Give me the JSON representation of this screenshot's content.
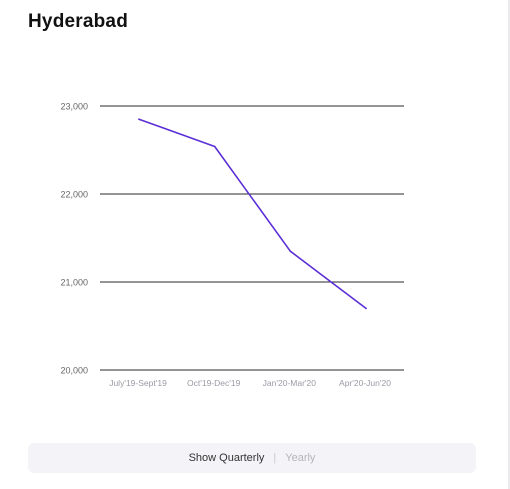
{
  "title": "Hyderabad",
  "toggle": {
    "active_label": "Show Quarterly",
    "separator": "|",
    "inactive_label": "Yearly"
  },
  "colors": {
    "line": "#5b2fd6",
    "grid": "#2a2a2a",
    "tick_text": "#666666",
    "x_tick_text": "#9a9aa4"
  },
  "chart_data": {
    "type": "line",
    "title": "Hyderabad",
    "xlabel": "",
    "ylabel": "",
    "categories": [
      "July'19-Sept'19",
      "Oct'19-Dec'19",
      "Jan'20-Mar'20",
      "Apr'20-Jun'20"
    ],
    "series": [
      {
        "values": [
          22850,
          22540,
          21350,
          20700
        ]
      }
    ],
    "ylim": [
      20000,
      23000
    ],
    "yticks": [
      20000,
      21000,
      22000,
      23000
    ],
    "ytick_labels": [
      "20,000",
      "21,000",
      "22,000",
      "23,000"
    ],
    "grid": true,
    "legend": "none"
  }
}
